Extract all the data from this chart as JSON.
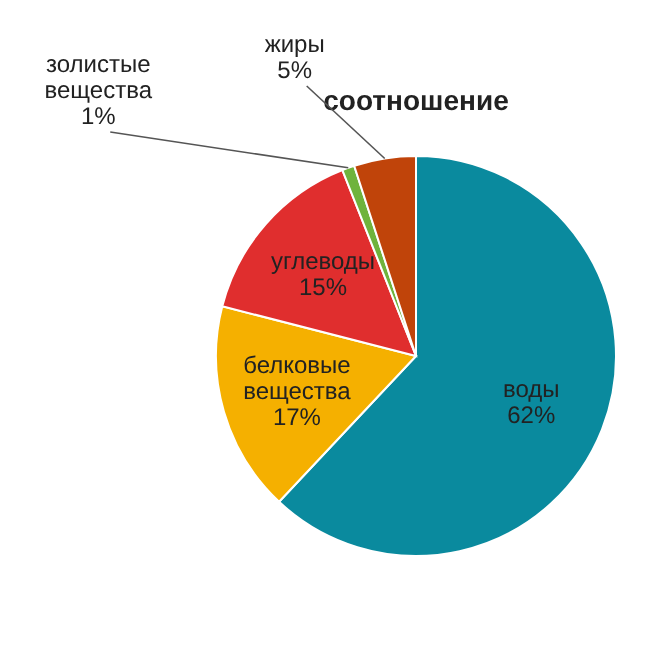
{
  "chart_data": {
    "type": "pie",
    "title": "соотношение",
    "categories": [
      "воды",
      "белковые вещества",
      "углеводы",
      "золистые вещества",
      "жиры"
    ],
    "values": [
      62,
      17,
      15,
      1,
      5
    ],
    "colors": [
      "#0a8a9e",
      "#f5b000",
      "#e02e2e",
      "#6fb33c",
      "#c0440a"
    ],
    "value_labels": [
      "62%",
      "17%",
      "15%",
      "1%",
      "5%"
    ]
  }
}
